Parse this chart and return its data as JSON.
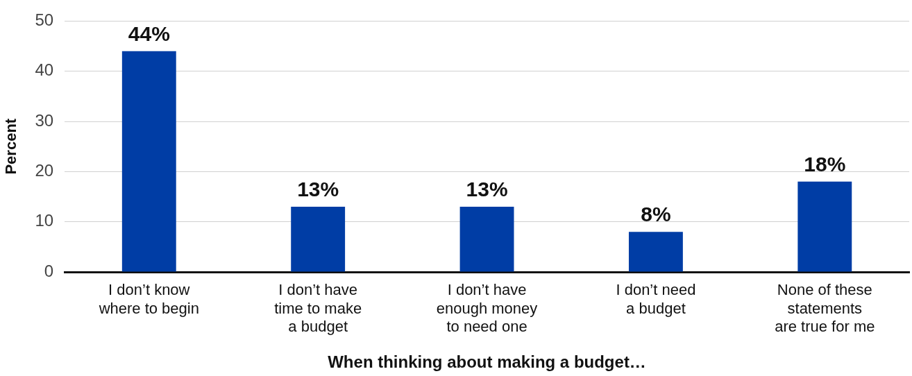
{
  "chart_data": {
    "type": "bar",
    "xlabel": "When thinking about making a budget…",
    "ylabel": "Percent",
    "categories": [
      "I don’t know\nwhere to begin",
      "I don’t have\ntime to make\na budget",
      "I don’t have\nenough money\nto need one",
      "I don’t need\na budget",
      "None of these\nstatements\nare true for me"
    ],
    "values": [
      44,
      13,
      13,
      8,
      18
    ],
    "value_labels": [
      "44%",
      "13%",
      "13%",
      "8%",
      "18%"
    ],
    "color": "#003da5",
    "ylim": [
      0,
      50
    ],
    "yticks": [
      0,
      10,
      20,
      30,
      40,
      50
    ],
    "grid": "y",
    "legend": false
  }
}
